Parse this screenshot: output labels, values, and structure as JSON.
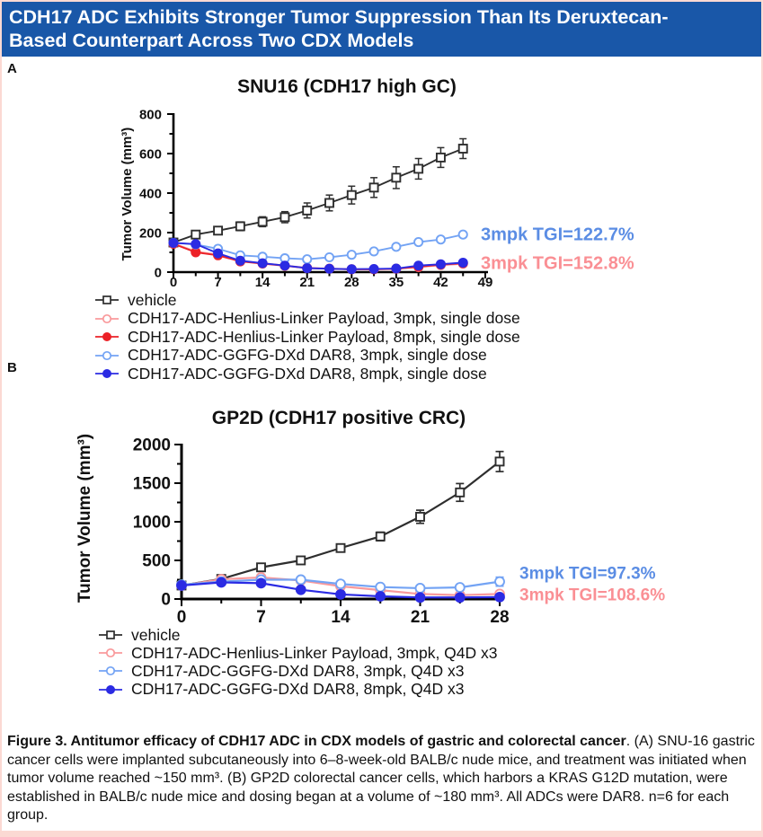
{
  "header": {
    "title_lines": [
      "CDH17 ADC Exhibits Stronger Tumor Suppression Than Its Deruxtecan-",
      "Based Counterpart Across Two CDX Models"
    ],
    "bg_color": "#1957a8"
  },
  "panels": {
    "a_label": "A",
    "b_label": "B"
  },
  "colors": {
    "header_bg": "#1957a8",
    "border_pink": "#fbd9d3",
    "vehicle": "#2e2e2e",
    "pink": "#f9999b",
    "red": "#ec2127",
    "light_blue": "#73a3f4",
    "dark_blue": "#2b2be3",
    "annotation_blue": "#5b8de4",
    "annotation_pink": "#fa8f94"
  },
  "chart_data": [
    {
      "id": "chart-a",
      "type": "line",
      "title": "SNU16 (CDH17 high GC)",
      "xlabel": "",
      "ylabel": "Tumor Volume (mm³)",
      "xlim": [
        0,
        49
      ],
      "ylim": [
        0,
        800
      ],
      "xticks": [
        0,
        7,
        14,
        21,
        28,
        35,
        42,
        49
      ],
      "yticks": [
        0,
        200,
        400,
        600,
        800
      ],
      "grid": false,
      "legend_position": "below",
      "x": [
        0,
        3.5,
        7,
        10.5,
        14,
        17.5,
        21,
        24.5,
        28,
        31.5,
        35,
        38.5,
        42,
        45.5
      ],
      "series": [
        {
          "name": "vehicle",
          "color": "#2e2e2e",
          "marker": "open-square",
          "values": [
            150,
            190,
            210,
            232,
            255,
            278,
            312,
            350,
            390,
            428,
            478,
            523,
            580,
            625
          ],
          "errors": [
            12,
            18,
            20,
            22,
            25,
            28,
            38,
            40,
            45,
            50,
            55,
            52,
            50,
            50
          ]
        },
        {
          "name": "CDH17-ADC-Henlius-Linker Payload, 3mpk, single dose",
          "color": "#f9999b",
          "marker": "open-circle",
          "values": [
            145,
            105,
            88,
            55,
            45,
            33,
            22,
            18,
            15,
            15,
            18,
            25,
            35,
            42
          ],
          "errors": [
            10,
            8,
            7,
            6,
            5,
            4,
            4,
            4,
            4,
            4,
            4,
            5,
            6,
            6
          ]
        },
        {
          "name": "CDH17-ADC-Henlius-Linker Payload, 8mpk, single dose",
          "color": "#ec2127",
          "marker": "filled-circle",
          "values": [
            143,
            100,
            85,
            54,
            43,
            32,
            20,
            17,
            14,
            14,
            17,
            27,
            38,
            45
          ],
          "errors": [
            10,
            8,
            7,
            6,
            5,
            4,
            4,
            4,
            4,
            4,
            4,
            5,
            6,
            6
          ]
        },
        {
          "name": "CDH17-ADC-GGFG-DXd DAR8, 3mpk, single dose",
          "color": "#73a3f4",
          "marker": "open-circle",
          "values": [
            148,
            140,
            118,
            85,
            78,
            70,
            65,
            75,
            88,
            105,
            128,
            152,
            165,
            190
          ],
          "errors": [
            8,
            10,
            10,
            8,
            8,
            8,
            8,
            8,
            8,
            10,
            12,
            14,
            14,
            14
          ]
        },
        {
          "name": "CDH17-ADC-GGFG-DXd DAR8, 8mpk, single dose",
          "color": "#2b2be3",
          "marker": "filled-circle",
          "values": [
            148,
            142,
            95,
            58,
            45,
            33,
            20,
            17,
            15,
            16,
            18,
            33,
            40,
            48
          ],
          "errors": [
            8,
            8,
            7,
            6,
            5,
            4,
            4,
            4,
            4,
            4,
            4,
            5,
            6,
            6
          ]
        }
      ],
      "annotations": [
        {
          "text": "3mpk TGI=122.7%",
          "color": "#5b8de4",
          "y": 195
        },
        {
          "text": "3mpk TGI=152.8%",
          "color": "#fa8f94",
          "y": 48
        }
      ]
    },
    {
      "id": "chart-b",
      "type": "line",
      "title": "GP2D (CDH17 positive CRC)",
      "xlabel": "",
      "ylabel": "Tumor Volume (mm³)",
      "xlim": [
        0,
        28
      ],
      "ylim": [
        0,
        2000
      ],
      "xticks": [
        0,
        7,
        14,
        21,
        28
      ],
      "yticks": [
        0,
        500,
        1000,
        1500,
        2000
      ],
      "grid": false,
      "legend_position": "below",
      "x": [
        0,
        3.5,
        7,
        10.5,
        14,
        17.5,
        21,
        24.5,
        28
      ],
      "series": [
        {
          "name": "vehicle",
          "color": "#2e2e2e",
          "marker": "open-square",
          "values": [
            175,
            260,
            410,
            500,
            660,
            810,
            1065,
            1380,
            1780
          ],
          "errors": [
            15,
            20,
            30,
            35,
            45,
            55,
            85,
            115,
            130
          ]
        },
        {
          "name": "CDH17-ADC-Henlius-Linker Payload, 3mpk, Q4D x3",
          "color": "#f9999b",
          "marker": "open-circle",
          "values": [
            175,
            255,
            280,
            240,
            165,
            115,
            65,
            50,
            65
          ],
          "errors": [
            12,
            15,
            20,
            20,
            20,
            15,
            12,
            10,
            15
          ]
        },
        {
          "name": "CDH17-ADC-GGFG-DXd DAR8, 3mpk, Q4D x3",
          "color": "#73a3f4",
          "marker": "open-circle",
          "values": [
            185,
            225,
            250,
            250,
            195,
            155,
            140,
            150,
            225
          ],
          "errors": [
            12,
            12,
            18,
            18,
            22,
            25,
            30,
            32,
            58
          ]
        },
        {
          "name": "CDH17-ADC-GGFG-DXd DAR8, 8mpk, Q4D x3",
          "color": "#2b2be3",
          "marker": "filled-circle",
          "values": [
            175,
            215,
            205,
            120,
            60,
            35,
            20,
            20,
            25
          ],
          "errors": [
            8,
            10,
            12,
            12,
            10,
            8,
            6,
            6,
            8
          ]
        }
      ],
      "annotations": [
        {
          "text": "3mpk TGI=97.3%",
          "color": "#5b8de4",
          "y": 340
        },
        {
          "text": "3mpk TGI=108.6%",
          "color": "#fa8f94",
          "y": 62
        }
      ]
    }
  ],
  "caption": {
    "bold": "Figure 3. Antitumor efficacy of CDH17 ADC in CDX models of gastric and colorectal cancer",
    "rest": ". (A) SNU-16 gastric cancer cells were implanted subcutaneously into 6–8-week-old BALB/c nude mice, and treatment was initiated when tumor volume reached ~150 mm³. (B) GP2D colorectal cancer cells, which harbors a KRAS G12D mutation, were established in BALB/c nude mice and dosing began at a volume of ~180 mm³. All ADCs were DAR8. n=6 for each group."
  }
}
